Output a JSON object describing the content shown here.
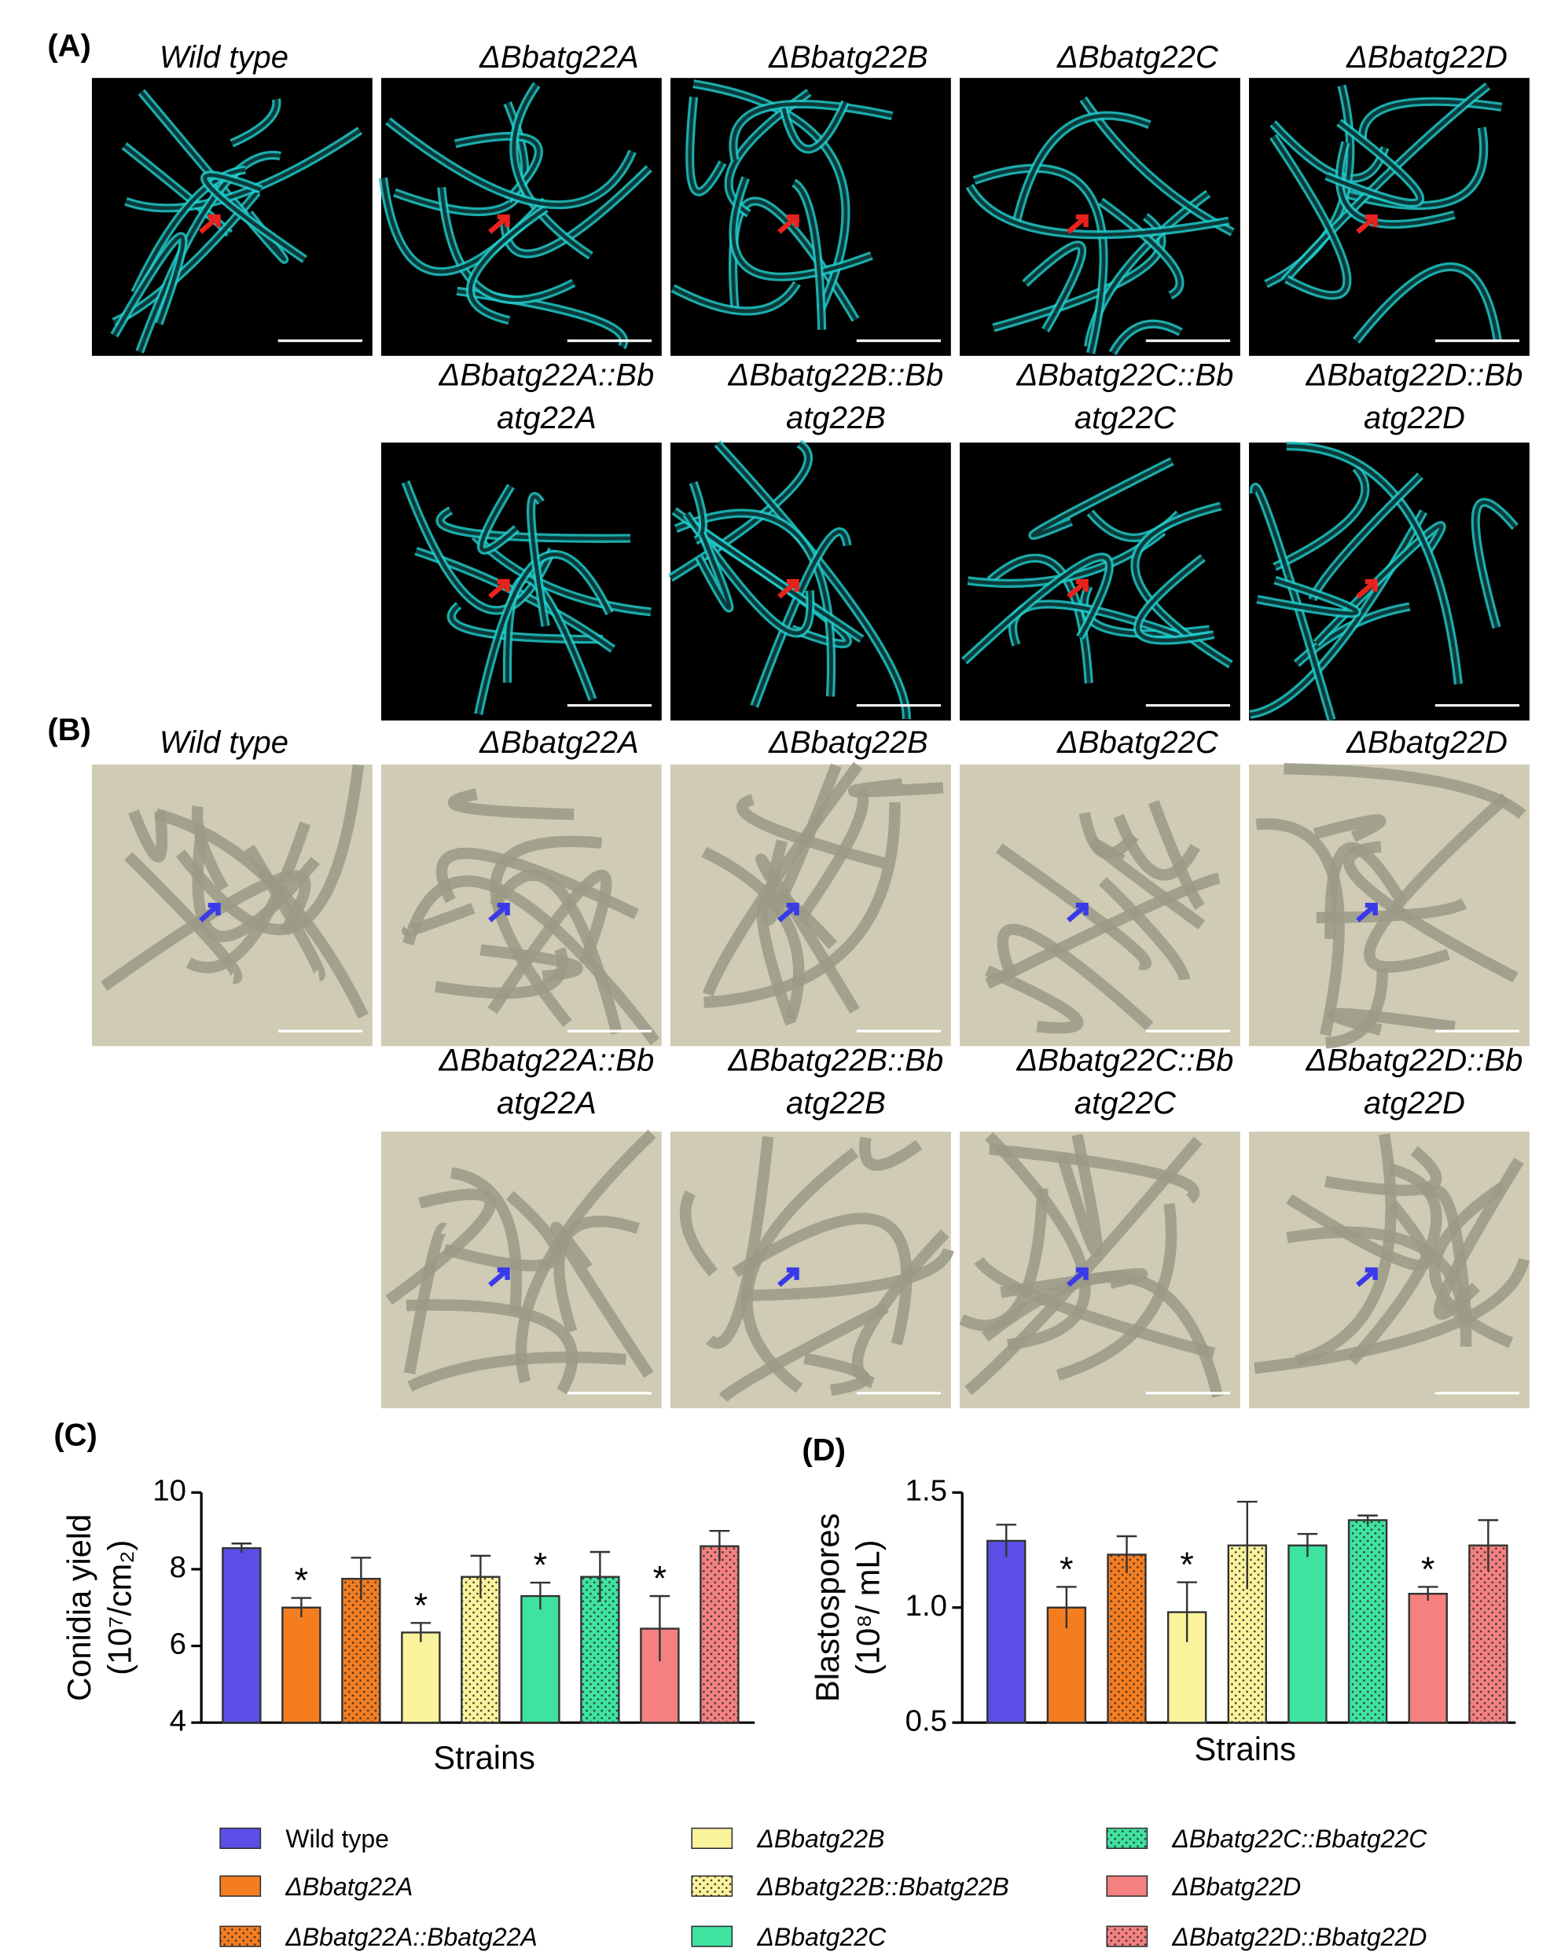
{
  "panel_labels": [
    "(A)",
    "(B)",
    "(C)",
    "(D)"
  ],
  "panels": {
    "A": {
      "row1": [
        "Wild type",
        "ΔBbatg22A",
        "ΔBbatg22B",
        "ΔBbatg22C",
        "ΔBbatg22D"
      ],
      "row2": [
        [
          "ΔBbatg22A::Bb",
          "atg22A"
        ],
        [
          "ΔBbatg22B::Bb",
          "atg22B"
        ],
        [
          "ΔBbatg22C::Bb",
          "atg22C"
        ],
        [
          "ΔBbatg22D::Bb",
          "atg22D"
        ]
      ]
    },
    "B": {
      "row1": [
        "Wild type",
        "ΔBbatg22A",
        "ΔBbatg22B",
        "ΔBbatg22C",
        "ΔBbatg22D"
      ],
      "row2": [
        [
          "ΔBbatg22A::Bb",
          "atg22A"
        ],
        [
          "ΔBbatg22B::Bb",
          "atg22B"
        ],
        [
          "ΔBbatg22C::Bb",
          "atg22C"
        ],
        [
          "ΔBbatg22D::Bb",
          "atg22D"
        ]
      ]
    }
  },
  "legend": {
    "entries": [
      {
        "name": "Wild type",
        "color": "#5b4ee6",
        "dotted": false
      },
      {
        "name": "ΔBbatg22A",
        "color": "#f47d20",
        "dotted": false
      },
      {
        "name": "ΔBbatg22A::Bbatg22A",
        "color": "#f47d20",
        "dotted": true
      },
      {
        "name": "ΔBbatg22B",
        "color": "#fbf39c",
        "dotted": false
      },
      {
        "name": "ΔBbatg22B::Bbatg22B",
        "color": "#fbf39c",
        "dotted": true
      },
      {
        "name": "ΔBbatg22C",
        "color": "#3ee3a0",
        "dotted": false
      },
      {
        "name": "ΔBbatg22C::Bbatg22C",
        "color": "#3ee3a0",
        "dotted": true
      },
      {
        "name": "ΔBbatg22D",
        "color": "#f48080",
        "dotted": false
      },
      {
        "name": "ΔBbatg22D::Bbatg22D",
        "color": "#f48080",
        "dotted": true
      }
    ]
  },
  "chart_data": [
    {
      "type": "bar",
      "xlabel": "Strains",
      "ylabel": [
        "Conidia yield",
        "(10⁷/cm₂)"
      ],
      "categories": [
        null,
        null,
        null,
        null,
        null,
        null,
        null,
        null,
        null
      ],
      "values": [
        8.55,
        7.0,
        7.75,
        6.35,
        7.8,
        7.3,
        7.8,
        6.45,
        8.6
      ],
      "errors": [
        0.12,
        0.25,
        0.55,
        0.25,
        0.55,
        0.35,
        0.65,
        0.85,
        0.4
      ],
      "significance": [
        null,
        "*",
        null,
        "*",
        null,
        "*",
        null,
        "*",
        null
      ],
      "ylim": [
        4,
        10
      ],
      "yticks": [
        4,
        6,
        8,
        10
      ]
    },
    {
      "type": "bar",
      "xlabel": "Strains",
      "ylabel": [
        "Blastospores",
        "(10⁸/ mL)"
      ],
      "categories": [
        null,
        null,
        null,
        null,
        null,
        null,
        null,
        null,
        null
      ],
      "values": [
        1.29,
        1.0,
        1.23,
        0.98,
        1.27,
        1.27,
        1.38,
        1.06,
        1.27
      ],
      "errors": [
        0.07,
        0.09,
        0.08,
        0.13,
        0.19,
        0.05,
        0.02,
        0.03,
        0.11
      ],
      "significance": [
        null,
        "*",
        null,
        "*",
        null,
        null,
        null,
        "*",
        null
      ],
      "ylim": [
        0.5,
        1.5
      ],
      "yticks": [
        0.5,
        {
          "value": 1,
          "label": "1.0"
        },
        1.5
      ]
    }
  ]
}
